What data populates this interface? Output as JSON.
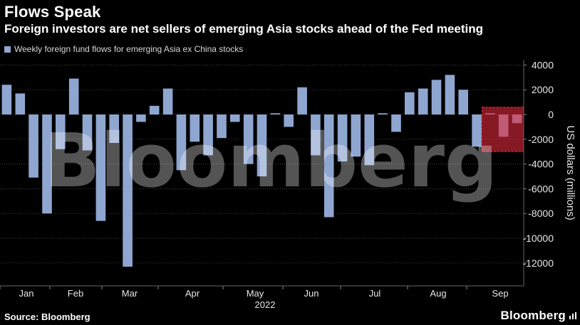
{
  "header": {
    "title": "Flows Speak",
    "subtitle": "Foreign investors are net sellers of emerging Asia stocks ahead of the Fed meeting"
  },
  "footer": {
    "source": "Source: Bloomberg",
    "brand": "Bloomberg"
  },
  "watermark": "Bloomberg",
  "colors": {
    "bar": "#8ea6d0",
    "highlight": "#e02a3c",
    "background": "#000000"
  },
  "chart_data": {
    "type": "bar",
    "legend": "Weekly foreign fund flows for emerging Asia ex China stocks",
    "legend_position": "top-left",
    "ylabel": "US dollars (millions)",
    "xlabel": "2022",
    "ylim": [
      -13000,
      4500
    ],
    "yticks": [
      4000,
      2000,
      0,
      -2000,
      -4000,
      -6000,
      -8000,
      -10000,
      -12000
    ],
    "ytick_labels": [
      "4000",
      "2000",
      "0",
      "-2000",
      "-4000",
      "-6000",
      "-8000",
      "-10000",
      "-12000"
    ],
    "month_labels": [
      "Jan",
      "Feb",
      "Mar",
      "Apr",
      "May",
      "Jun",
      "Jul",
      "Aug",
      "Sep"
    ],
    "grid": true,
    "values": [
      2400,
      1700,
      -5100,
      -8000,
      -2800,
      2900,
      -2900,
      -8600,
      -2300,
      -12300,
      -600,
      700,
      2100,
      -4500,
      -2200,
      -3300,
      -1900,
      -600,
      -4000,
      -5000,
      100,
      -1000,
      2200,
      -3300,
      -8300,
      -3800,
      -3400,
      -4100,
      100,
      -1400,
      1800,
      2100,
      2800,
      3200,
      2000,
      -2600,
      100,
      -1800,
      -700
    ],
    "highlight_region": {
      "from_index": 36,
      "to_index": 38,
      "ymin": -3000,
      "ymax": 600
    }
  }
}
